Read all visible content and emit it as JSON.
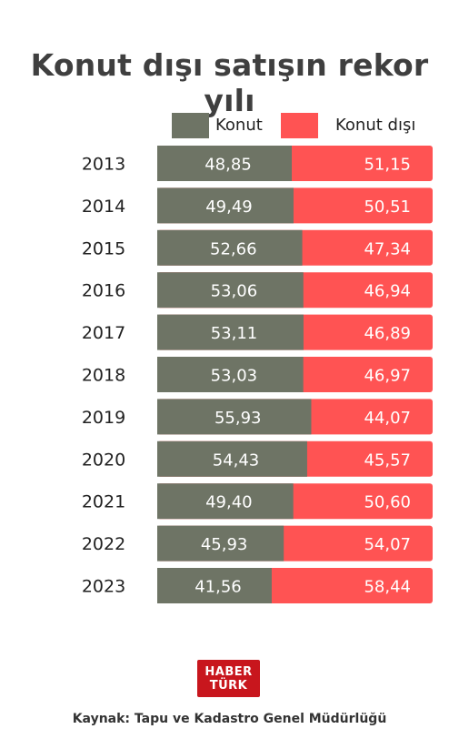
{
  "title": "Konut dışı satışın rekor yılı",
  "legend": [
    {
      "label": "Konut",
      "color": "#6e7465"
    },
    {
      "label": "Konut dışı",
      "color": "#ff5353"
    }
  ],
  "chart_data": {
    "type": "bar",
    "orientation": "horizontal",
    "stacked": true,
    "normalized_to": 100,
    "categories": [
      "2013",
      "2014",
      "2015",
      "2016",
      "2017",
      "2018",
      "2019",
      "2020",
      "2021",
      "2022",
      "2023"
    ],
    "series": [
      {
        "name": "Konut",
        "color": "#6e7465",
        "values": [
          48.85,
          49.49,
          52.66,
          53.06,
          53.11,
          53.03,
          55.93,
          54.43,
          49.4,
          45.93,
          41.56
        ],
        "labels": [
          "48,85",
          "49,49",
          "52,66",
          "53,06",
          "53,11",
          "53,03",
          "55,93",
          "54,43",
          "49,40",
          "45,93",
          "41,56"
        ]
      },
      {
        "name": "Konut dışı",
        "color": "#ff5353",
        "values": [
          51.15,
          50.51,
          47.34,
          46.94,
          46.89,
          46.97,
          44.07,
          45.57,
          50.6,
          54.07,
          58.44
        ],
        "labels": [
          "51,15",
          "50,51",
          "47,34",
          "46,94",
          "46,89",
          "46,97",
          "44,07",
          "45,57",
          "50,60",
          "54,07",
          "58,44"
        ]
      }
    ],
    "legend_position": "top",
    "grid": false
  },
  "logo": {
    "line1": "HABER",
    "line2": "TÜRK"
  },
  "source": "Kaynak: Tapu ve Kadastro Genel Müdürlüğü"
}
